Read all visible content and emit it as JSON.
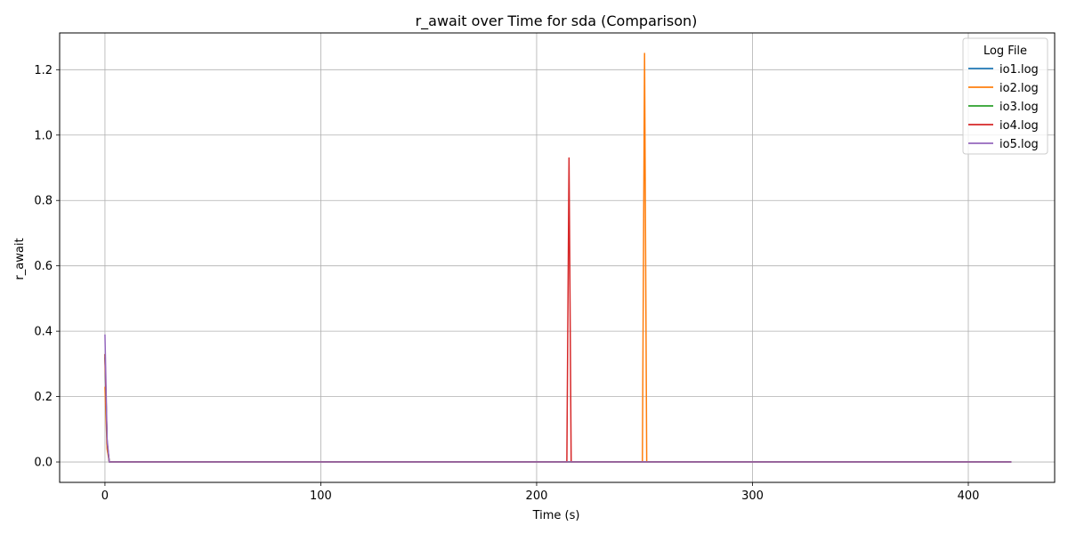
{
  "chart_data": {
    "type": "line",
    "title": "r_await over Time for sda (Comparison)",
    "xlabel": "Time (s)",
    "ylabel": "r_await",
    "xlim": [
      -21,
      440
    ],
    "ylim": [
      -0.0625,
      1.3125
    ],
    "xticks": [
      0,
      100,
      200,
      300,
      400
    ],
    "yticks": [
      0.0,
      0.2,
      0.4,
      0.6,
      0.8,
      1.0,
      1.2
    ],
    "xtick_labels": [
      "0",
      "100",
      "200",
      "300",
      "400"
    ],
    "ytick_labels": [
      "0.0",
      "0.2",
      "0.4",
      "0.6",
      "0.8",
      "1.0",
      "1.2"
    ],
    "grid": true,
    "legend": {
      "title": "Log File",
      "position": "top-right"
    },
    "series": [
      {
        "name": "io1.log",
        "color": "#1f77b4",
        "x": [
          0,
          1,
          2,
          420
        ],
        "y": [
          0.32,
          0.05,
          0.0,
          0.0
        ]
      },
      {
        "name": "io2.log",
        "color": "#ff7f0e",
        "x": [
          0,
          1,
          2,
          249,
          250,
          251,
          420
        ],
        "y": [
          0.23,
          0.04,
          0.0,
          0.0,
          1.25,
          0.0,
          0.0
        ]
      },
      {
        "name": "io3.log",
        "color": "#2ca02c",
        "x": [
          0,
          1,
          2,
          420
        ],
        "y": [
          0.33,
          0.06,
          0.0,
          0.0
        ]
      },
      {
        "name": "io4.log",
        "color": "#d62728",
        "x": [
          0,
          1,
          2,
          214,
          215,
          216,
          420
        ],
        "y": [
          0.33,
          0.06,
          0.0,
          0.0,
          0.93,
          0.0,
          0.0
        ]
      },
      {
        "name": "io5.log",
        "color": "#9467bd",
        "x": [
          0,
          1,
          2,
          420
        ],
        "y": [
          0.39,
          0.07,
          0.0,
          0.0
        ]
      }
    ]
  }
}
